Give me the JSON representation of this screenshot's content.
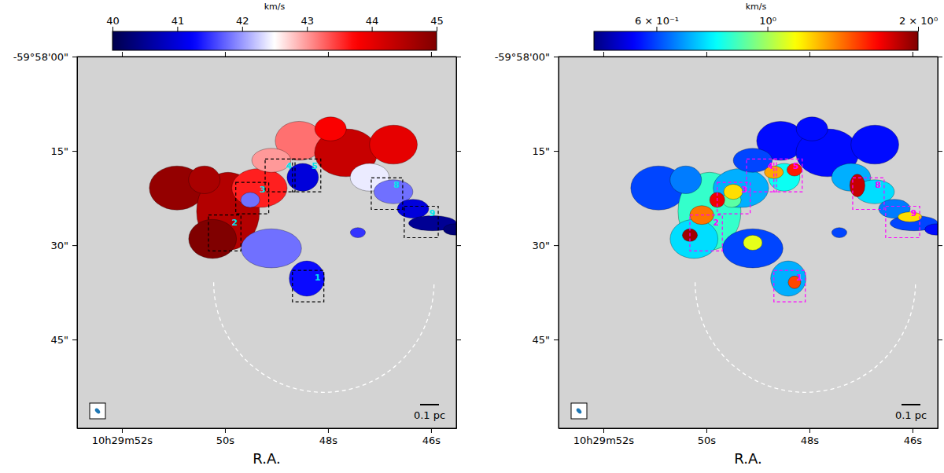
{
  "chart_data": [
    {
      "type": "heatmap",
      "color": "seismic",
      "colorbar_label": "km/s",
      "clim": [
        40,
        45
      ],
      "cticks": [
        40,
        41,
        42,
        43,
        44,
        45
      ],
      "x_label": "R.A.",
      "xlim": [
        52.87,
        45.51
      ],
      "xticks": [
        {
          "value": 52,
          "label": "10h29m52s"
        },
        {
          "value": 50,
          "label": "50s"
        },
        {
          "value": 48,
          "label": "48s"
        },
        {
          "value": 46,
          "label": "46s"
        }
      ],
      "ylim": [
        0,
        59.1
      ],
      "yticks": [
        {
          "value": 0,
          "label": "-59°58'00\""
        },
        {
          "value": 15,
          "label": "15\""
        },
        {
          "value": 30,
          "label": "30\""
        },
        {
          "value": 45,
          "label": "45\""
        }
      ],
      "cells": [
        {
          "ra": 50.93,
          "dec": 20.9,
          "rx": 4.4,
          "ry": 3.5,
          "value": 44.8
        },
        {
          "ra": 49.94,
          "dec": 24.6,
          "rx": 5.0,
          "ry": 6.2,
          "value": 44.5
        },
        {
          "ra": 50.24,
          "dec": 29.0,
          "rx": 3.8,
          "ry": 3.1,
          "value": 45.0
        },
        {
          "ra": 50.4,
          "dec": 19.6,
          "rx": 2.5,
          "ry": 2.2,
          "value": 44.6
        },
        {
          "ra": 49.33,
          "dec": 20.9,
          "rx": 4.4,
          "ry": 3.1,
          "value": 43.6
        },
        {
          "ra": 49.51,
          "dec": 22.8,
          "rx": 1.5,
          "ry": 1.2,
          "value": 41.8
        },
        {
          "ra": 48.56,
          "dec": 13.4,
          "rx": 3.8,
          "ry": 3.1,
          "value": 43.2
        },
        {
          "ra": 49.1,
          "dec": 16.5,
          "rx": 3.1,
          "ry": 1.9,
          "value": 43.0
        },
        {
          "ra": 48.49,
          "dec": 19.2,
          "rx": 2.5,
          "ry": 2.2,
          "value": 41.0
        },
        {
          "ra": 47.65,
          "dec": 15.3,
          "rx": 5.0,
          "ry": 3.8,
          "value": 44.3
        },
        {
          "ra": 47.95,
          "dec": 11.5,
          "rx": 2.5,
          "ry": 1.9,
          "value": 43.8
        },
        {
          "ra": 46.73,
          "dec": 14.0,
          "rx": 3.8,
          "ry": 3.1,
          "value": 44.0
        },
        {
          "ra": 47.19,
          "dec": 19.2,
          "rx": 3.1,
          "ry": 2.2,
          "value": 42.4
        },
        {
          "ra": 46.73,
          "dec": 21.5,
          "rx": 3.1,
          "ry": 1.9,
          "value": 41.8
        },
        {
          "ra": 46.35,
          "dec": 24.2,
          "rx": 2.5,
          "ry": 1.5,
          "value": 41.0
        },
        {
          "ra": 45.97,
          "dec": 26.5,
          "rx": 3.8,
          "ry": 1.2,
          "value": 40.5
        },
        {
          "ra": 45.54,
          "dec": 27.5,
          "rx": 1.8,
          "ry": 0.9,
          "value": 40.3
        },
        {
          "ra": 49.1,
          "dec": 30.5,
          "rx": 4.8,
          "ry": 3.1,
          "value": 41.8
        },
        {
          "ra": 48.41,
          "dec": 35.3,
          "rx": 2.8,
          "ry": 2.8,
          "value": 41.3
        },
        {
          "ra": 47.42,
          "dec": 28.0,
          "rx": 1.2,
          "ry": 0.8,
          "value": 41.5
        }
      ],
      "boxes": [
        {
          "ra": [
            48.69,
            48.08
          ],
          "dec": [
            34.0,
            39.0
          ],
          "label": "1"
        },
        {
          "ra": [
            50.32,
            49.69
          ],
          "dec": [
            25.2,
            30.9
          ],
          "label": "2"
        },
        {
          "ra": [
            49.79,
            49.15
          ],
          "dec": [
            20.0,
            25.0
          ],
          "label": "3"
        },
        {
          "ra": [
            49.22,
            48.64
          ],
          "dec": [
            16.3,
            21.5
          ],
          "label": "4"
        },
        {
          "ra": [
            48.69,
            48.14
          ],
          "dec": [
            16.3,
            21.5
          ],
          "label": "5"
        },
        {
          "ra": [
            47.16,
            46.55
          ],
          "dec": [
            19.3,
            24.3
          ],
          "label": "8"
        },
        {
          "ra": [
            46.52,
            45.86
          ],
          "dec": [
            23.8,
            28.8
          ],
          "label": "9"
        }
      ],
      "circle": {
        "ra": 48.08,
        "dec": 35.9,
        "r": 17.5
      },
      "scalebar_label": "0.1 pc"
    },
    {
      "type": "heatmap",
      "color": "jet",
      "log": true,
      "colorbar_label": "km/s",
      "clim": [
        0.45,
        2
      ],
      "cticks": [
        {
          "value": 0.6,
          "label": "6 × 10⁻¹"
        },
        {
          "value": 1,
          "label": "10⁰"
        },
        {
          "value": 2,
          "label": "2 × 10⁰"
        }
      ],
      "x_label": "R.A.",
      "xlim": [
        52.87,
        45.51
      ],
      "xticks": [
        {
          "value": 52,
          "label": "10h29m52s"
        },
        {
          "value": 50,
          "label": "50s"
        },
        {
          "value": 48,
          "label": "48s"
        },
        {
          "value": 46,
          "label": "46s"
        }
      ],
      "ylim": [
        0,
        59.1
      ],
      "yticks": [
        {
          "value": 0,
          "label": "-59°58'00\""
        },
        {
          "value": 15,
          "label": "15\""
        },
        {
          "value": 30,
          "label": "30\""
        },
        {
          "value": 45,
          "label": "45\""
        }
      ],
      "cells": [
        {
          "ra": 50.93,
          "dec": 20.9,
          "rx": 4.4,
          "ry": 3.5,
          "value": 0.6
        },
        {
          "ra": 49.94,
          "dec": 24.6,
          "rx": 5.0,
          "ry": 6.2,
          "value": 0.85
        },
        {
          "ra": 50.24,
          "dec": 29.0,
          "rx": 3.8,
          "ry": 3.1,
          "value": 0.75
        },
        {
          "ra": 50.4,
          "dec": 19.6,
          "rx": 2.5,
          "ry": 2.2,
          "value": 0.65
        },
        {
          "ra": 49.33,
          "dec": 20.9,
          "rx": 4.4,
          "ry": 3.1,
          "value": 0.7
        },
        {
          "ra": 49.51,
          "dec": 22.8,
          "rx": 1.5,
          "ry": 1.2,
          "value": 0.9
        },
        {
          "ra": 48.56,
          "dec": 13.4,
          "rx": 3.8,
          "ry": 3.1,
          "value": 0.55
        },
        {
          "ra": 49.1,
          "dec": 16.5,
          "rx": 3.1,
          "ry": 1.9,
          "value": 0.6
        },
        {
          "ra": 48.49,
          "dec": 19.2,
          "rx": 2.5,
          "ry": 2.2,
          "value": 0.8
        },
        {
          "ra": 47.65,
          "dec": 15.3,
          "rx": 5.0,
          "ry": 3.8,
          "value": 0.55
        },
        {
          "ra": 47.95,
          "dec": 11.5,
          "rx": 2.5,
          "ry": 1.9,
          "value": 0.55
        },
        {
          "ra": 46.73,
          "dec": 14.0,
          "rx": 3.8,
          "ry": 3.1,
          "value": 0.55
        },
        {
          "ra": 47.19,
          "dec": 19.2,
          "rx": 3.1,
          "ry": 2.2,
          "value": 0.7
        },
        {
          "ra": 46.73,
          "dec": 21.5,
          "rx": 3.1,
          "ry": 1.9,
          "value": 0.75
        },
        {
          "ra": 46.35,
          "dec": 24.2,
          "rx": 2.5,
          "ry": 1.5,
          "value": 0.65
        },
        {
          "ra": 45.97,
          "dec": 26.5,
          "rx": 3.8,
          "ry": 1.2,
          "value": 0.6
        },
        {
          "ra": 45.54,
          "dec": 27.5,
          "rx": 1.8,
          "ry": 0.9,
          "value": 0.55
        },
        {
          "ra": 49.1,
          "dec": 30.5,
          "rx": 4.8,
          "ry": 3.1,
          "value": 0.6
        },
        {
          "ra": 48.41,
          "dec": 35.3,
          "rx": 2.8,
          "ry": 2.8,
          "value": 0.7
        },
        {
          "ra": 47.42,
          "dec": 28.0,
          "rx": 1.2,
          "ry": 0.8,
          "value": 0.6
        },
        {
          "ra": 50.09,
          "dec": 25.2,
          "rx": 1.9,
          "ry": 1.5,
          "value": 1.4
        },
        {
          "ra": 49.79,
          "dec": 22.8,
          "rx": 1.2,
          "ry": 1.2,
          "value": 1.7
        },
        {
          "ra": 50.32,
          "dec": 28.4,
          "rx": 1.2,
          "ry": 1.0,
          "value": 1.9
        },
        {
          "ra": 49.48,
          "dec": 21.5,
          "rx": 1.5,
          "ry": 1.2,
          "value": 1.2
        },
        {
          "ra": 48.69,
          "dec": 18.4,
          "rx": 1.5,
          "ry": 1.0,
          "value": 1.3
        },
        {
          "ra": 48.29,
          "dec": 18.0,
          "rx": 1.2,
          "ry": 1.0,
          "value": 1.6
        },
        {
          "ra": 47.07,
          "dec": 20.5,
          "rx": 1.2,
          "ry": 1.8,
          "value": 1.8
        },
        {
          "ra": 46.05,
          "dec": 25.5,
          "rx": 1.9,
          "ry": 0.8,
          "value": 1.2
        },
        {
          "ra": 48.29,
          "dec": 35.9,
          "rx": 1.0,
          "ry": 1.0,
          "value": 1.5
        },
        {
          "ra": 49.1,
          "dec": 29.6,
          "rx": 1.5,
          "ry": 1.2,
          "value": 1.1
        }
      ],
      "boxes": [
        {
          "ra": [
            48.69,
            48.08
          ],
          "dec": [
            34.0,
            39.0
          ],
          "label": "1"
        },
        {
          "ra": [
            50.32,
            49.69
          ],
          "dec": [
            25.2,
            30.9
          ],
          "label": "2"
        },
        {
          "ra": [
            49.79,
            49.15
          ],
          "dec": [
            20.0,
            25.0
          ],
          "label": "3"
        },
        {
          "ra": [
            49.22,
            48.64
          ],
          "dec": [
            16.3,
            21.5
          ],
          "label": "4"
        },
        {
          "ra": [
            48.69,
            48.14
          ],
          "dec": [
            16.3,
            21.5
          ],
          "label": "5"
        },
        {
          "ra": [
            47.16,
            46.55
          ],
          "dec": [
            19.3,
            24.3
          ],
          "label": "8"
        },
        {
          "ra": [
            46.52,
            45.86
          ],
          "dec": [
            23.8,
            28.8
          ],
          "label": "9"
        }
      ],
      "circle": {
        "ra": 48.08,
        "dec": 35.9,
        "r": 17.5
      },
      "scalebar_label": "0.1 pc"
    }
  ]
}
